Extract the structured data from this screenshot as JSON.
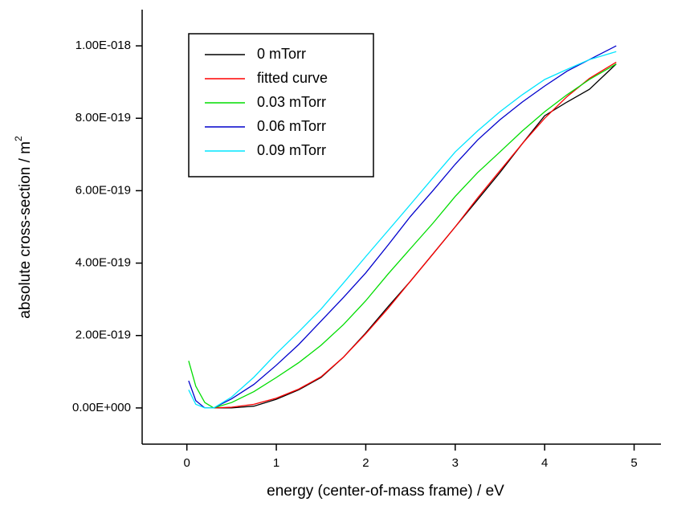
{
  "chart_data": {
    "type": "line",
    "x_label": "energy (center-of-mass frame) / eV",
    "y_label": "absolute cross-section / m",
    "y_label_sup": "2",
    "x": [
      0.02,
      0.1,
      0.2,
      0.3,
      0.5,
      0.75,
      1,
      1.25,
      1.5,
      1.75,
      2,
      2.25,
      2.5,
      2.75,
      3,
      3.25,
      3.5,
      3.75,
      4,
      4.25,
      4.5,
      4.8
    ],
    "series": [
      {
        "name": "0 mTorr",
        "color": "#000000",
        "values": [
          null,
          null,
          null,
          0,
          0,
          5e-21,
          2.4e-20,
          5e-20,
          8.4e-20,
          1.4e-19,
          2.07e-19,
          2.8e-19,
          3.5e-19,
          4.25e-19,
          5e-19,
          5.75e-19,
          6.5e-19,
          7.3e-19,
          8.07e-19,
          8.45e-19,
          8.8e-19,
          9.5e-19
        ]
      },
      {
        "name": "fitted curve",
        "color": "#ff0000",
        "values": [
          null,
          null,
          null,
          0,
          2e-21,
          1e-20,
          2.7e-20,
          5.2e-20,
          8.6e-20,
          1.4e-19,
          2.05e-19,
          2.75e-19,
          3.5e-19,
          4.25e-19,
          5e-19,
          5.8e-19,
          6.55e-19,
          7.3e-19,
          8e-19,
          8.6e-19,
          9.1e-19,
          9.55e-19
        ]
      },
      {
        "name": "0.03 mTorr",
        "color": "#00dd00",
        "values": [
          1.3e-19,
          6e-20,
          1.5e-20,
          0,
          1.5e-20,
          4.5e-20,
          8.4e-20,
          1.25e-19,
          1.73e-19,
          2.3e-19,
          2.96e-19,
          3.7e-19,
          4.4e-19,
          5.1e-19,
          5.84e-19,
          6.5e-19,
          7.07e-19,
          7.65e-19,
          8.18e-19,
          8.65e-19,
          9.07e-19,
          9.5e-19
        ]
      },
      {
        "name": "0.06 mTorr",
        "color": "#0000cc",
        "values": [
          7.5e-20,
          2e-20,
          0,
          0,
          2.5e-20,
          6.5e-20,
          1.18e-19,
          1.75e-19,
          2.4e-19,
          3.05e-19,
          3.73e-19,
          4.5e-19,
          5.29e-19,
          6e-19,
          6.73e-19,
          7.4e-19,
          7.96e-19,
          8.45e-19,
          8.89e-19,
          9.3e-19,
          9.62e-19,
          1e-18
        ]
      },
      {
        "name": "0.09 mTorr",
        "color": "#00e5ff",
        "values": [
          5e-20,
          1e-20,
          0,
          0,
          3e-20,
          8.5e-20,
          1.5e-19,
          2.1e-19,
          2.73e-19,
          3.45e-19,
          4.18e-19,
          4.9e-19,
          5.62e-19,
          6.35e-19,
          7.07e-19,
          7.65e-19,
          8.18e-19,
          8.65e-19,
          9.07e-19,
          9.35e-19,
          9.62e-19,
          9.84e-19
        ]
      }
    ],
    "xlim": [
      -0.5,
      5.3
    ],
    "ylim": [
      -1e-19,
      1.1e-18
    ],
    "xticks": [
      0,
      1,
      2,
      3,
      4,
      5
    ],
    "yticks": [
      {
        "value": 0,
        "label": "0.00E+000"
      },
      {
        "value": 2e-19,
        "label": "2.00E-019"
      },
      {
        "value": 4e-19,
        "label": "4.00E-019"
      },
      {
        "value": 6e-19,
        "label": "6.00E-019"
      },
      {
        "value": 8e-19,
        "label": "8.00E-019"
      },
      {
        "value": 1e-18,
        "label": "1.00E-018"
      }
    ],
    "grid": false,
    "legend": "upper left"
  }
}
